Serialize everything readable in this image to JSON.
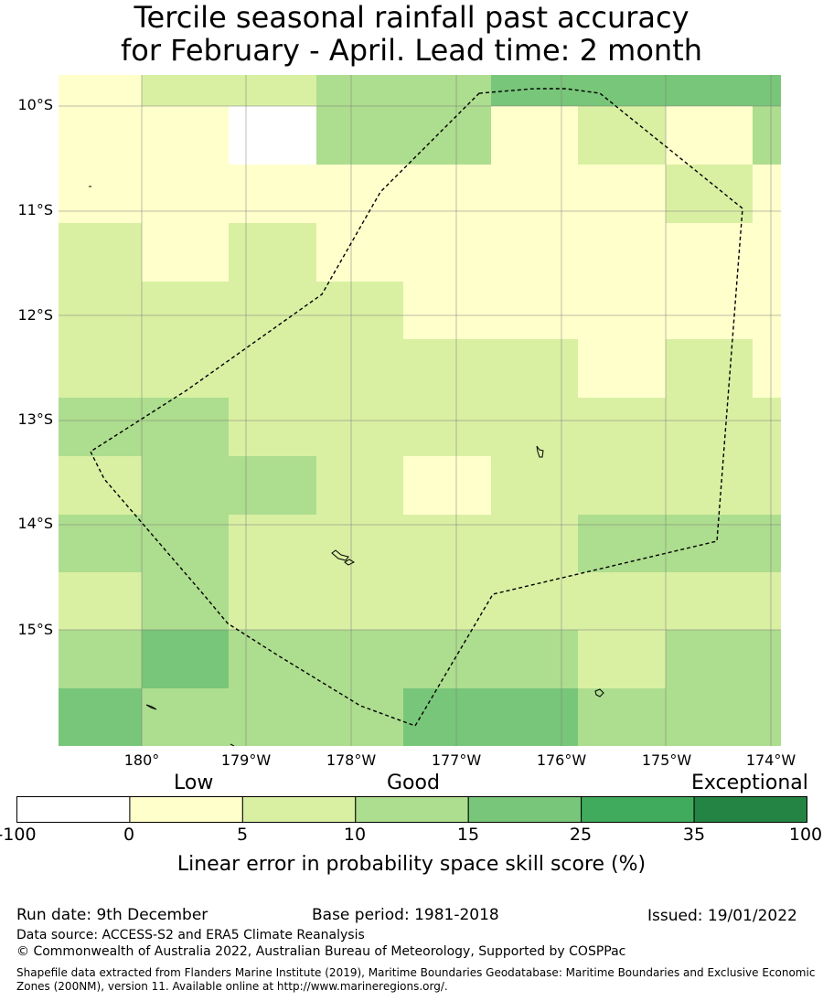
{
  "title": {
    "line1": "Tercile seasonal rainfall past accuracy",
    "line2": "for February - April. Lead time: 2 month"
  },
  "map": {
    "lat_labels": [
      "10°S",
      "11°S",
      "12°S",
      "13°S",
      "14°S",
      "15°S"
    ],
    "lon_labels": [
      "180°",
      "179°W",
      "178°W",
      "177°W",
      "176°W",
      "175°W",
      "174°W"
    ],
    "colors": {
      "white": "#ffffff",
      "c0_5": "#ffffcc",
      "c5_10": "#d9f0a3",
      "c10_15": "#addd8e",
      "c15_25": "#78c679",
      "c25_35": "#41ab5d",
      "c35_100": "#238443"
    }
  },
  "colorbar": {
    "categories": [
      "Low",
      "Good",
      "Exceptional"
    ],
    "ticks": [
      "-100",
      "0",
      "5",
      "10",
      "15",
      "25",
      "35",
      "100"
    ],
    "colors": [
      "#ffffff",
      "#ffffcc",
      "#d9f0a3",
      "#addd8e",
      "#78c679",
      "#41ab5d",
      "#238443"
    ],
    "label": "Linear error in probability space skill score (%)"
  },
  "footer": {
    "run_date": "Run date: 9th December",
    "base_period": "Base period: 1981-2018",
    "issued": "Issued: 19/01/2022",
    "data_source": "Data source: ACCESS-S2 and ERA5 Climate Reanalysis",
    "copyright": "© Commonwealth of Australia 2022, Australian Bureau of Meteorology, Supported by COSPPac",
    "shapefile_line1": "Shapefile data extracted from Flanders Marine Institute (2019), Maritime Boundaries Geodatabase: Maritime Boundaries and Exclusive Economic",
    "shapefile_line2": "Zones (200NM), version 11. Available online at http://www.marineregions.org/."
  }
}
